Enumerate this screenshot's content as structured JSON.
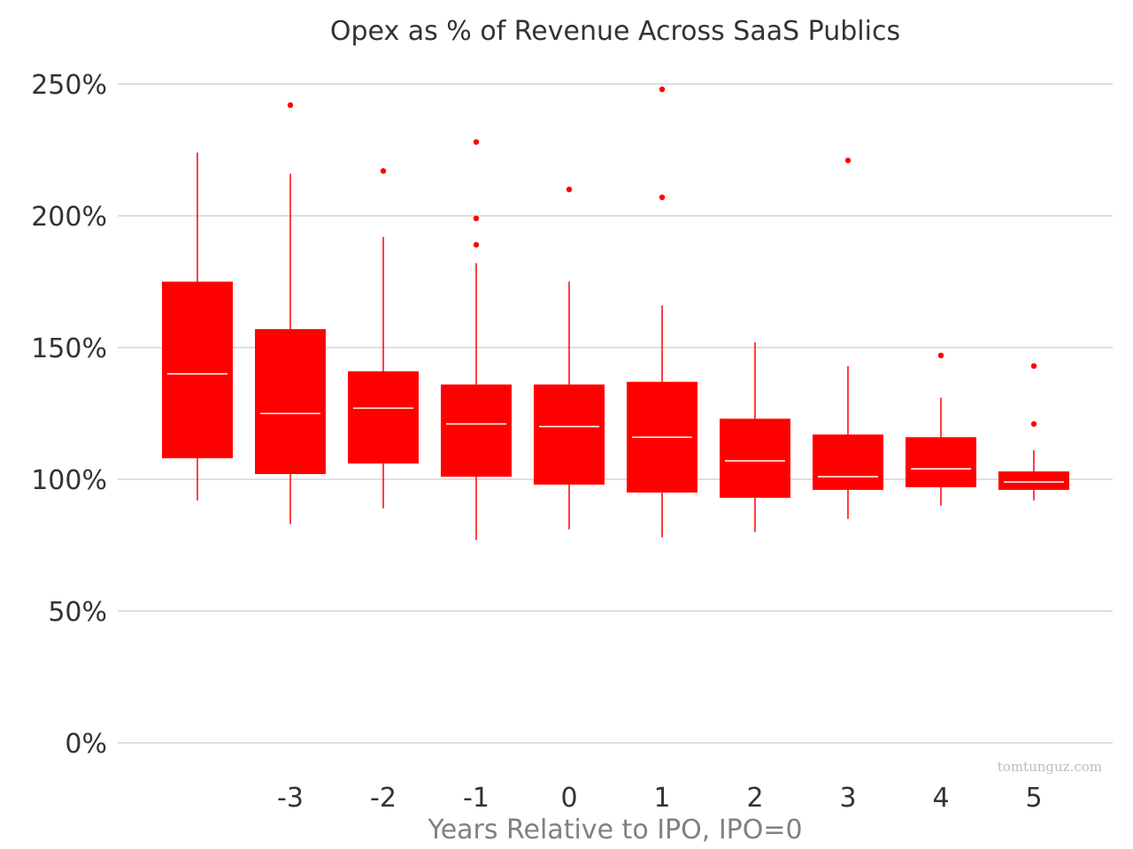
{
  "chart_data": {
    "type": "box",
    "title": "Opex as % of Revenue Across SaaS Publics",
    "xlabel": "Years Relative to IPO, IPO=0",
    "ylabel": "",
    "ylim": [
      0,
      250
    ],
    "yticks": [
      "0%",
      "50%",
      "100%",
      "150%",
      "200%",
      "250%"
    ],
    "ytick_values": [
      0,
      50,
      100,
      150,
      200,
      250
    ],
    "grid": "horizontal",
    "color": "#ff0000",
    "median_color": "#ffffff",
    "watermark": "tomtunguz.com",
    "categories": [
      "",
      "-3",
      "-2",
      "-1",
      "0",
      "1",
      "2",
      "3",
      "4",
      "5"
    ],
    "boxes": [
      {
        "category": "",
        "whisker_low": 92,
        "q1": 108,
        "median": 140,
        "q3": 175,
        "whisker_high": 224,
        "outliers": []
      },
      {
        "category": "-3",
        "whisker_low": 83,
        "q1": 102,
        "median": 125,
        "q3": 157,
        "whisker_high": 216,
        "outliers": [
          242
        ]
      },
      {
        "category": "-2",
        "whisker_low": 89,
        "q1": 106,
        "median": 127,
        "q3": 141,
        "whisker_high": 192,
        "outliers": [
          217
        ]
      },
      {
        "category": "-1",
        "whisker_low": 77,
        "q1": 101,
        "median": 121,
        "q3": 136,
        "whisker_high": 182,
        "outliers": [
          228,
          199,
          189
        ]
      },
      {
        "category": "0",
        "whisker_low": 81,
        "q1": 98,
        "median": 120,
        "q3": 136,
        "whisker_high": 175,
        "outliers": [
          210
        ]
      },
      {
        "category": "1",
        "whisker_low": 78,
        "q1": 95,
        "median": 116,
        "q3": 137,
        "whisker_high": 166,
        "outliers": [
          248,
          207
        ]
      },
      {
        "category": "2",
        "whisker_low": 80,
        "q1": 93,
        "median": 107,
        "q3": 123,
        "whisker_high": 152,
        "outliers": []
      },
      {
        "category": "3",
        "whisker_low": 85,
        "q1": 96,
        "median": 101,
        "q3": 117,
        "whisker_high": 143,
        "outliers": [
          221
        ]
      },
      {
        "category": "4",
        "whisker_low": 90,
        "q1": 97,
        "median": 104,
        "q3": 116,
        "whisker_high": 131,
        "outliers": [
          147
        ]
      },
      {
        "category": "5",
        "whisker_low": 92,
        "q1": 96,
        "median": 99,
        "q3": 103,
        "whisker_high": 111,
        "outliers": [
          143,
          121
        ]
      }
    ]
  }
}
